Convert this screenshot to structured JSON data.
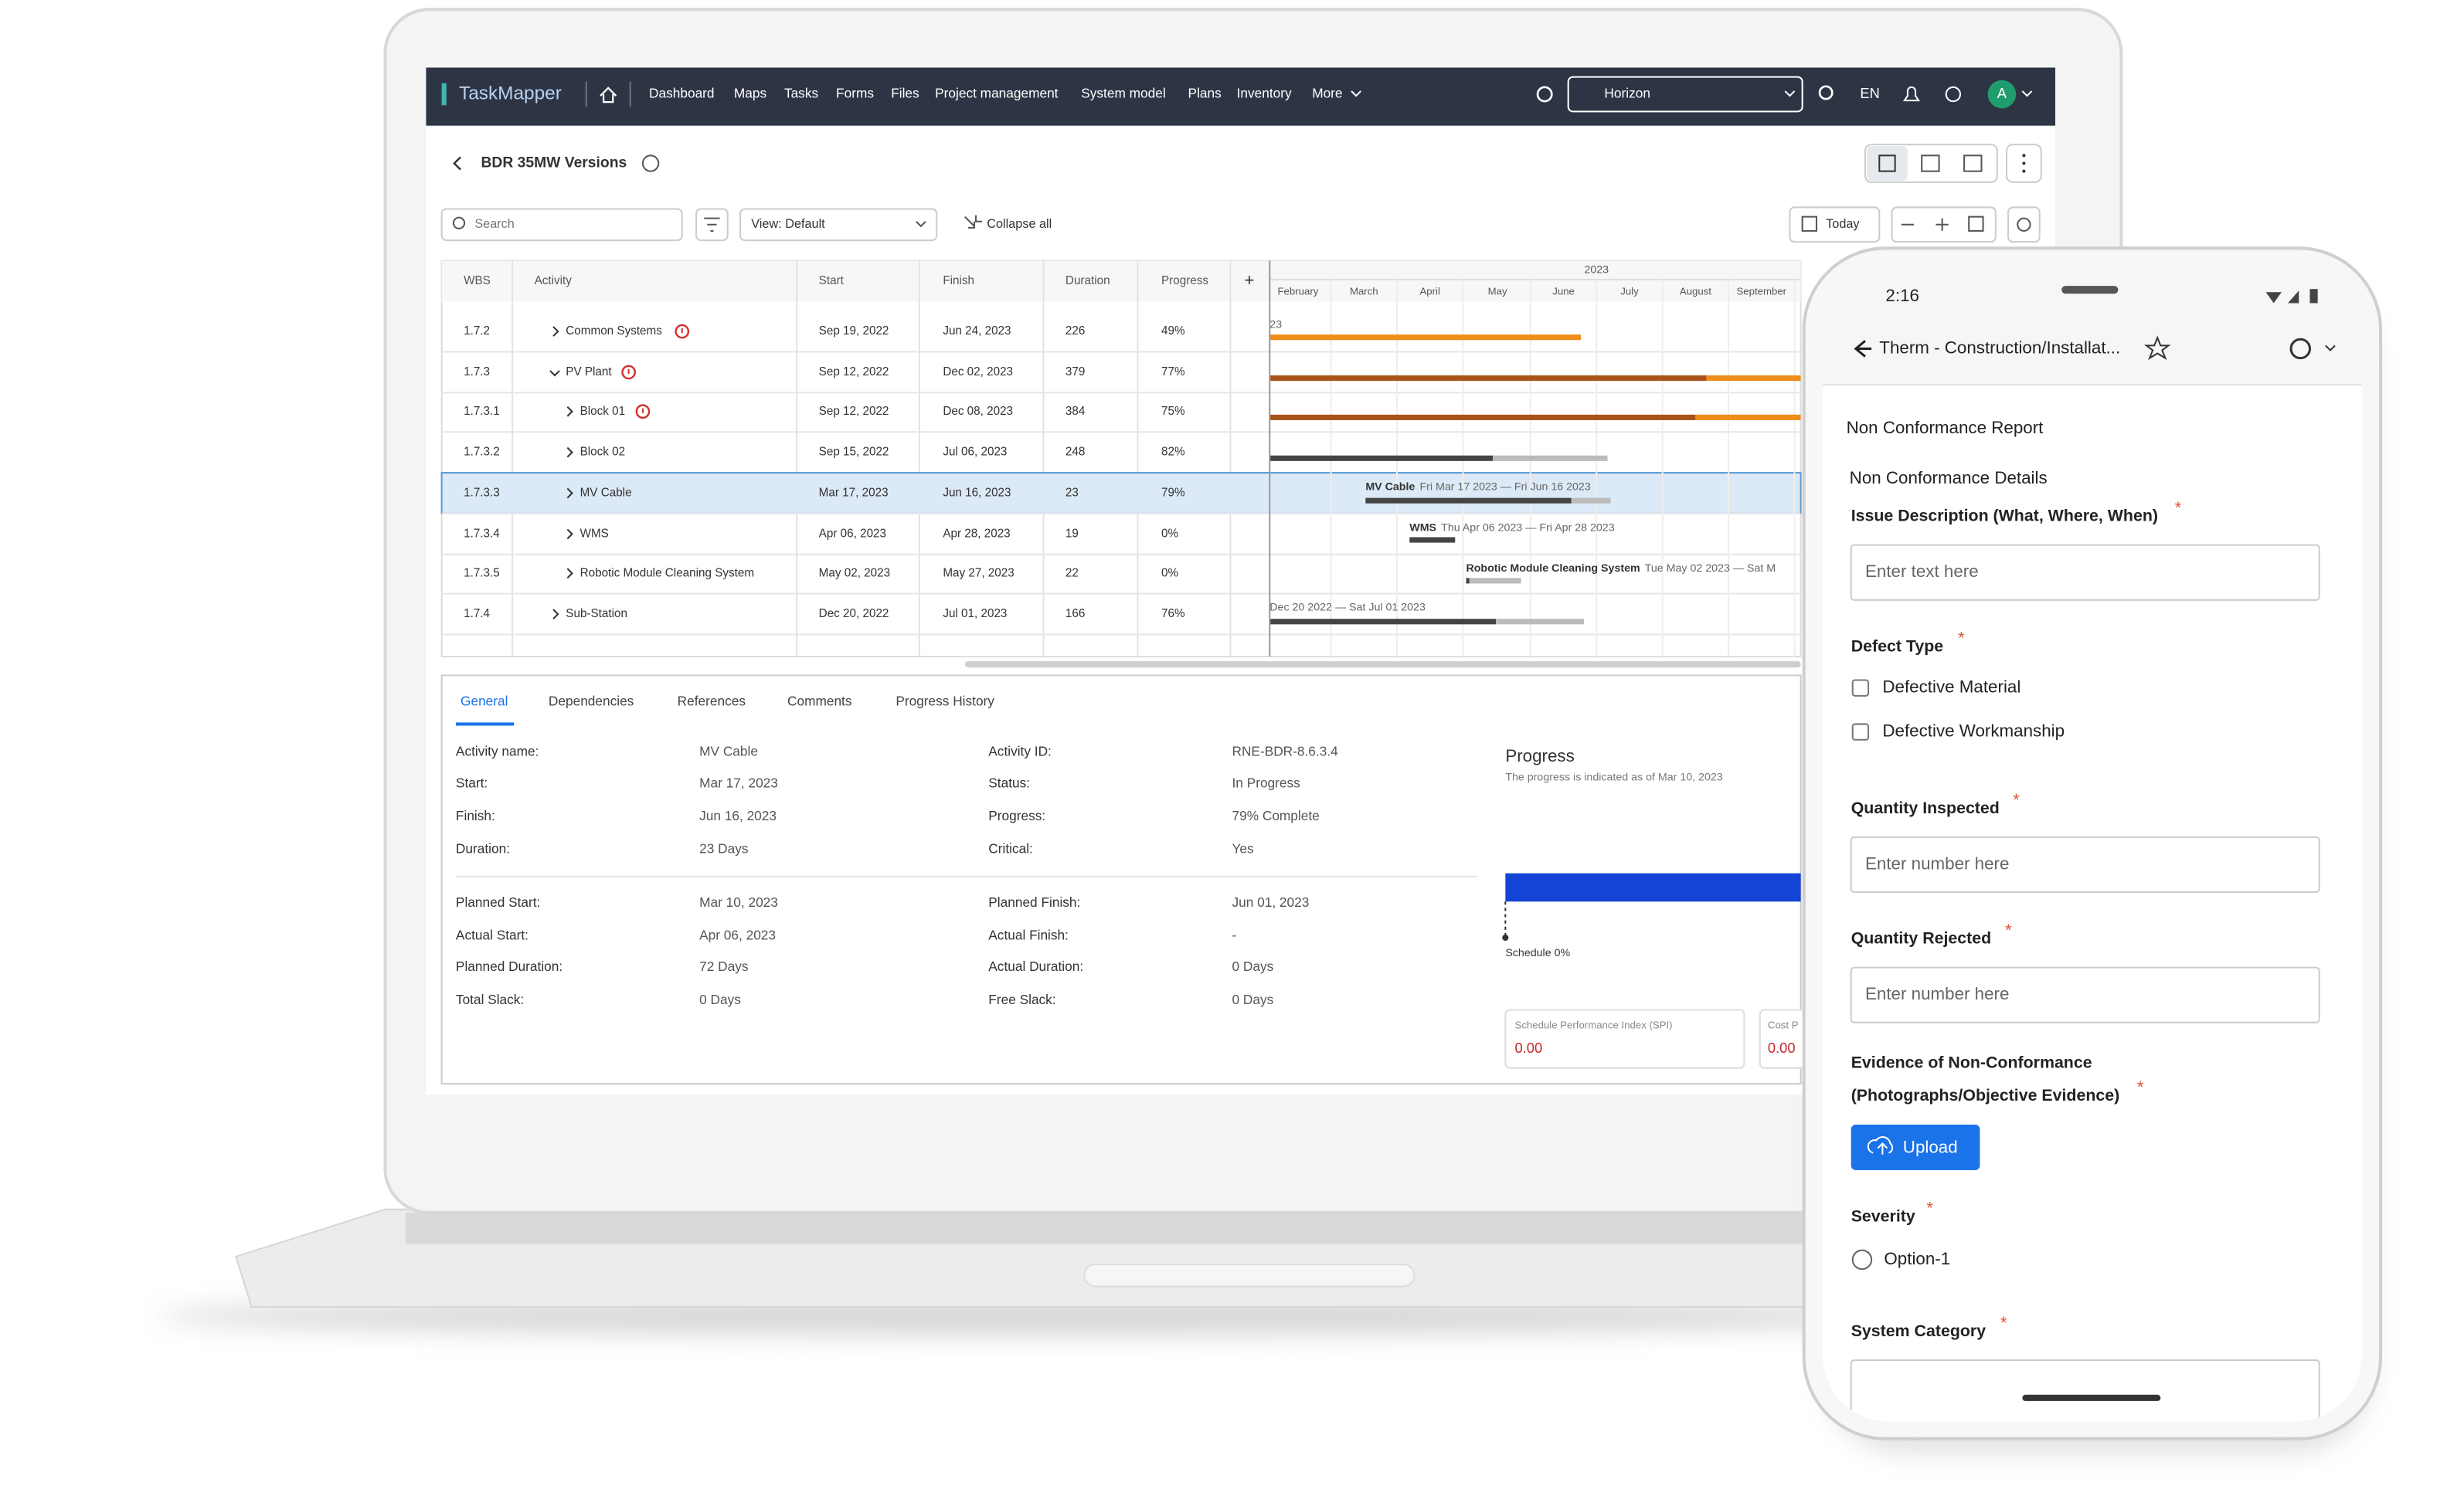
{
  "app": {
    "brand": "TaskMapper",
    "nav": [
      "Dashboard",
      "Maps",
      "Tasks",
      "Forms",
      "Files",
      "Project management",
      "System model",
      "Plans",
      "Inventory",
      "More"
    ],
    "workspace": "Horizon",
    "language": "EN",
    "avatar": "A"
  },
  "page": {
    "title": "BDR 35MW Versions",
    "search": "Search",
    "view": "View: Default",
    "collapse": "Collapse all",
    "today": "Today"
  },
  "table": {
    "headers": [
      "WBS",
      "Activity",
      "Start",
      "Finish",
      "Duration",
      "Progress"
    ],
    "rows": [
      [
        "1.7.2",
        "Common Systems",
        "Sep 19, 2022",
        "Jun 24, 2023",
        "226",
        "49%"
      ],
      [
        "1.7.3",
        "PV Plant",
        "Sep 12, 2022",
        "Dec 02, 2023",
        "379",
        "77%"
      ],
      [
        "1.7.3.1",
        "Block 01",
        "Sep 12, 2022",
        "Dec 08, 2023",
        "384",
        "75%"
      ],
      [
        "1.7.3.2",
        "Block 02",
        "Sep 15, 2022",
        "Jul 06, 2023",
        "248",
        "82%"
      ],
      [
        "1.7.3.3",
        "MV Cable",
        "Mar 17, 2023",
        "Jun 16, 2023",
        "23",
        "79%"
      ],
      [
        "1.7.3.4",
        "WMS",
        "Apr 06, 2023",
        "Apr 28, 2023",
        "19",
        "0%"
      ],
      [
        "1.7.3.5",
        "Robotic Module Cleaning System",
        "May 02, 2023",
        "May 27, 2023",
        "22",
        "0%"
      ],
      [
        "1.7.4",
        "Sub-Station",
        "Dec 20, 2022",
        "Jul 01, 2023",
        "166",
        "76%"
      ]
    ]
  },
  "gantt": {
    "year": "2023",
    "months": [
      "February",
      "March",
      "April",
      "May",
      "June",
      "July",
      "August",
      "September"
    ],
    "bars": [
      {
        "name": "MV Cable",
        "dates": "Fri Mar 17 2023 — Fri Jun 16 2023"
      },
      {
        "name": "WMS",
        "dates": "Thu Apr 06 2023 — Fri Apr 28 2023"
      },
      {
        "name": "Robotic Module Cleaning System",
        "dates": "Tue May 02 2023 — Sat M"
      }
    ],
    "partial_labels": [
      "23",
      "Dec 20 2022 — Sat Jul 01 2023"
    ]
  },
  "details": {
    "tabs": [
      "General",
      "Dependencies",
      "References",
      "Comments",
      "Progress History"
    ],
    "left": [
      [
        "Activity name:",
        "MV Cable"
      ],
      [
        "Start:",
        "Mar 17, 2023"
      ],
      [
        "Finish:",
        "Jun 16, 2023"
      ],
      [
        "Duration:",
        "23 Days"
      ],
      [
        "Planned Start:",
        "Mar 10, 2023"
      ],
      [
        "Actual Start:",
        "Apr 06, 2023"
      ],
      [
        "Planned Duration:",
        "72 Days"
      ],
      [
        "Total Slack:",
        "0 Days"
      ]
    ],
    "right": [
      [
        "Activity ID:",
        "RNE-BDR-8.6.3.4"
      ],
      [
        "Status:",
        "In Progress"
      ],
      [
        "Progress:",
        "79% Complete"
      ],
      [
        "Critical:",
        "Yes"
      ],
      [
        "Planned Finish:",
        "Jun 01, 2023"
      ],
      [
        "Actual Finish:",
        "-"
      ],
      [
        "Actual Duration:",
        "0 Days"
      ],
      [
        "Free Slack:",
        "0 Days"
      ]
    ],
    "progress_title": "Progress",
    "progress_note": "The progress is indicated as of Mar 10, 2023",
    "schedule": "Schedule 0%",
    "spi_label": "Schedule Performance Index (SPI)",
    "spi_value": "0.00",
    "cost_label": "Cost P",
    "cost_value": "0.00"
  },
  "phone": {
    "time": "2:16",
    "header": "Therm - Construction/Installat...",
    "title": "Non Conformance Report",
    "section": "Non Conformance Details",
    "required": "*",
    "issue_label": "Issue Description (What, Where, When)",
    "text_placeholder": "Enter text here",
    "defect_label": "Defect Type",
    "defect_options": [
      "Defective Material",
      "Defective Workmanship"
    ],
    "inspected_label": "Quantity Inspected",
    "rejected_label": "Quantity Rejected",
    "number_placeholder": "Enter number here",
    "evidence_label": [
      "Evidence of Non-Conformance",
      "(Photographs/Objective Evidence)"
    ],
    "upload": "Upload",
    "severity_label": "Severity",
    "severity_option": "Option-1",
    "category_label": "System Category"
  }
}
